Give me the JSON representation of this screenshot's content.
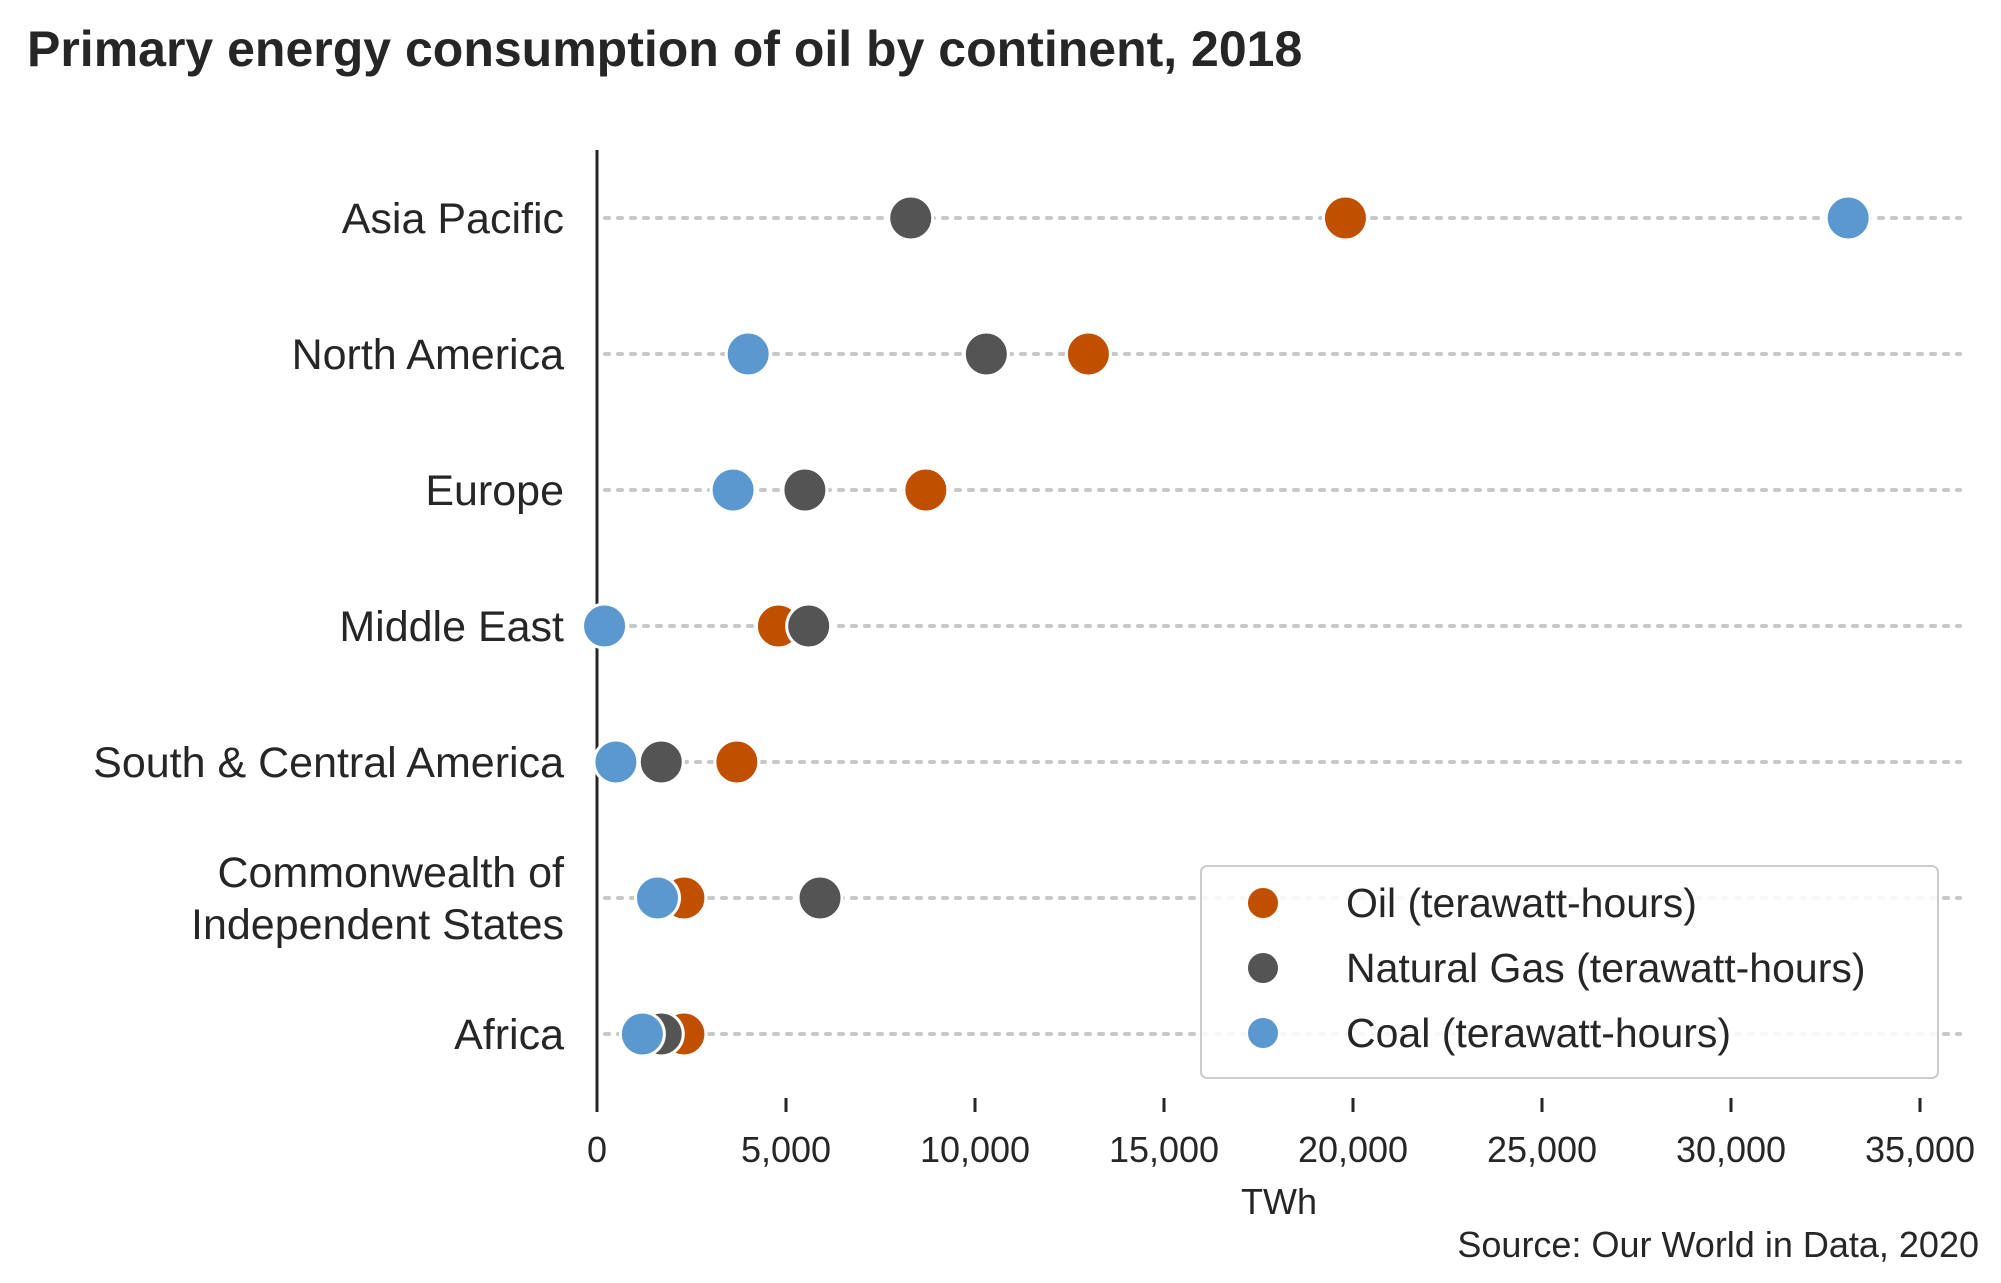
{
  "colors": {
    "oil": "#c04f00",
    "gas": "#545454",
    "coal": "#5b98d0",
    "axis": "#262626",
    "grid": "#c8c8c8"
  },
  "chart_data": {
    "type": "scatter",
    "title": "Primary energy consumption of oil by continent, 2018",
    "xlabel": "TWh",
    "ylabel": "",
    "source": "Source: Our World in Data, 2020",
    "xlim": [
      0,
      35000
    ],
    "xticks": [
      0,
      5000,
      10000,
      15000,
      20000,
      25000,
      30000,
      35000
    ],
    "xtick_labels": [
      "0",
      "5,000",
      "10,000",
      "15,000",
      "20,000",
      "25,000",
      "30,000",
      "35,000"
    ],
    "legend_position": "lower-right",
    "grid": "horizontal dotted row lines",
    "categories": [
      [
        "Asia Pacific"
      ],
      [
        "North America"
      ],
      [
        "Europe"
      ],
      [
        "Middle East"
      ],
      [
        "South & Central America"
      ],
      [
        "Commonwealth of",
        "Independent States"
      ],
      [
        "Africa"
      ]
    ],
    "series": [
      {
        "name": "Oil (terawatt-hours)",
        "color_key": "oil",
        "values": [
          19800,
          13000,
          8700,
          4800,
          3700,
          2300,
          2300
        ]
      },
      {
        "name": "Natural Gas (terawatt-hours)",
        "color_key": "gas",
        "values": [
          8300,
          10300,
          5500,
          5600,
          1700,
          5900,
          1700
        ]
      },
      {
        "name": "Coal (terawatt-hours)",
        "color_key": "coal",
        "values": [
          33100,
          4000,
          3600,
          200,
          500,
          1600,
          1200
        ]
      }
    ]
  }
}
